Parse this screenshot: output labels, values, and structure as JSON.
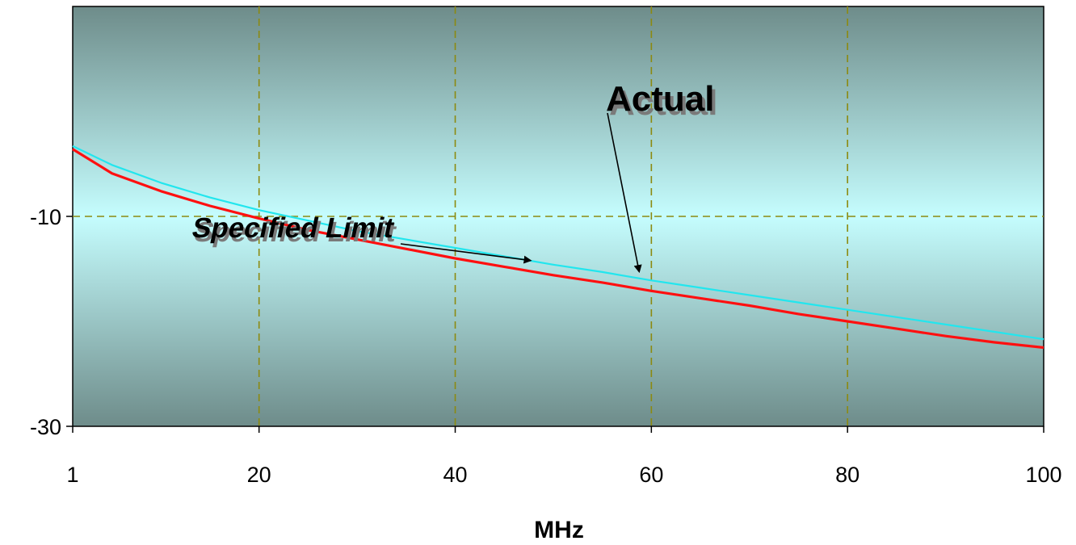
{
  "chart_data": {
    "type": "line",
    "xlabel": "MHz",
    "ylabel": "",
    "xlim": [
      1,
      100
    ],
    "ylim": [
      -30,
      10
    ],
    "x_ticks": [
      1,
      20,
      40,
      60,
      80,
      100
    ],
    "y_ticks": [
      -10,
      -30
    ],
    "grid": true,
    "series": [
      {
        "name": "Actual",
        "color": "#22e6ee",
        "x": [
          1,
          5,
          10,
          15,
          20,
          25,
          30,
          35,
          40,
          45,
          50,
          55,
          60,
          65,
          70,
          75,
          80,
          85,
          90,
          95,
          100
        ],
        "y": [
          -3.3,
          -5.1,
          -6.8,
          -8.2,
          -9.4,
          -10.4,
          -11.4,
          -12.2,
          -13.0,
          -13.8,
          -14.6,
          -15.3,
          -16.1,
          -16.8,
          -17.5,
          -18.2,
          -18.9,
          -19.6,
          -20.3,
          -21.0,
          -21.7
        ]
      },
      {
        "name": "Specified Limit",
        "color": "#ff1010",
        "x": [
          1,
          5,
          10,
          15,
          20,
          25,
          30,
          35,
          40,
          45,
          50,
          55,
          60,
          65,
          70,
          75,
          80,
          85,
          90,
          95,
          100
        ],
        "y": [
          -3.6,
          -5.9,
          -7.6,
          -9.0,
          -10.2,
          -11.3,
          -12.2,
          -13.1,
          -14.0,
          -14.8,
          -15.6,
          -16.3,
          -17.1,
          -17.8,
          -18.5,
          -19.3,
          -20.0,
          -20.7,
          -21.4,
          -22.0,
          -22.5
        ]
      }
    ],
    "annotations": [
      {
        "text": "Actual",
        "target_series": "Actual",
        "target_x": 59
      },
      {
        "text": "Specified Limit",
        "target_series": "Specified Limit",
        "target_x": 47
      }
    ]
  },
  "colors": {
    "plot_edge": "#6e8c8a",
    "plot_center": "#c5fdfe",
    "grid": "#8c8a10"
  }
}
